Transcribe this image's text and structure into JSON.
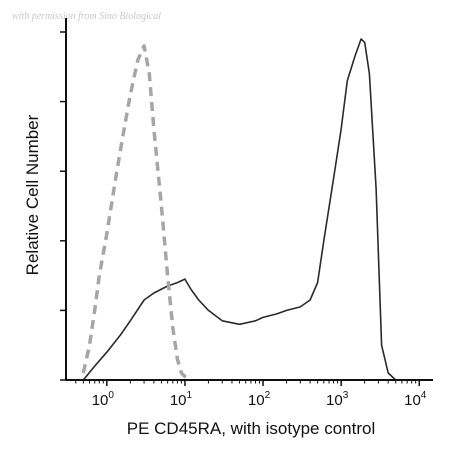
{
  "watermark": "with permission from Sino Biological",
  "chart_data": {
    "type": "line",
    "title": "",
    "xlabel": "PE CD45RA, with isotype control",
    "ylabel": "Relative Cell Number",
    "xscale": "log",
    "xlim": [
      0.3,
      15000
    ],
    "ylim": [
      0,
      100
    ],
    "x_ticks": [
      {
        "base": "10",
        "exp": "0",
        "value": 1
      },
      {
        "base": "10",
        "exp": "1",
        "value": 10
      },
      {
        "base": "10",
        "exp": "2",
        "value": 100
      },
      {
        "base": "10",
        "exp": "3",
        "value": 1000
      },
      {
        "base": "10",
        "exp": "4",
        "value": 10000
      }
    ],
    "grid": false,
    "series": [
      {
        "style": "solid",
        "color": "#2a2a2a",
        "x": [
          0.5,
          0.7,
          1.0,
          1.5,
          2.0,
          3.0,
          4.0,
          6.0,
          8.0,
          10,
          12,
          15,
          20,
          30,
          50,
          80,
          100,
          150,
          200,
          300,
          400,
          500,
          600,
          800,
          1000,
          1200,
          1500,
          1800,
          2000,
          2300,
          2800,
          3300,
          4000,
          5000
        ],
        "values": [
          0,
          4,
          8,
          13,
          17,
          23,
          25,
          27,
          28,
          29,
          26,
          23,
          20,
          17,
          16,
          17,
          18,
          19,
          20,
          21,
          23,
          28,
          40,
          58,
          72,
          86,
          93,
          98,
          97,
          88,
          55,
          10,
          2,
          0
        ]
      },
      {
        "style": "dashed",
        "color": "#a6a6a6",
        "x": [
          0.5,
          0.6,
          0.7,
          0.8,
          1.0,
          1.3,
          1.6,
          2.0,
          2.5,
          3.0,
          3.5,
          4.0,
          5.0,
          6.0,
          7.0,
          8.0,
          9.0,
          10,
          12
        ],
        "values": [
          2,
          10,
          20,
          30,
          42,
          58,
          70,
          82,
          92,
          96,
          88,
          72,
          50,
          30,
          15,
          6,
          2,
          1,
          0
        ]
      }
    ]
  }
}
